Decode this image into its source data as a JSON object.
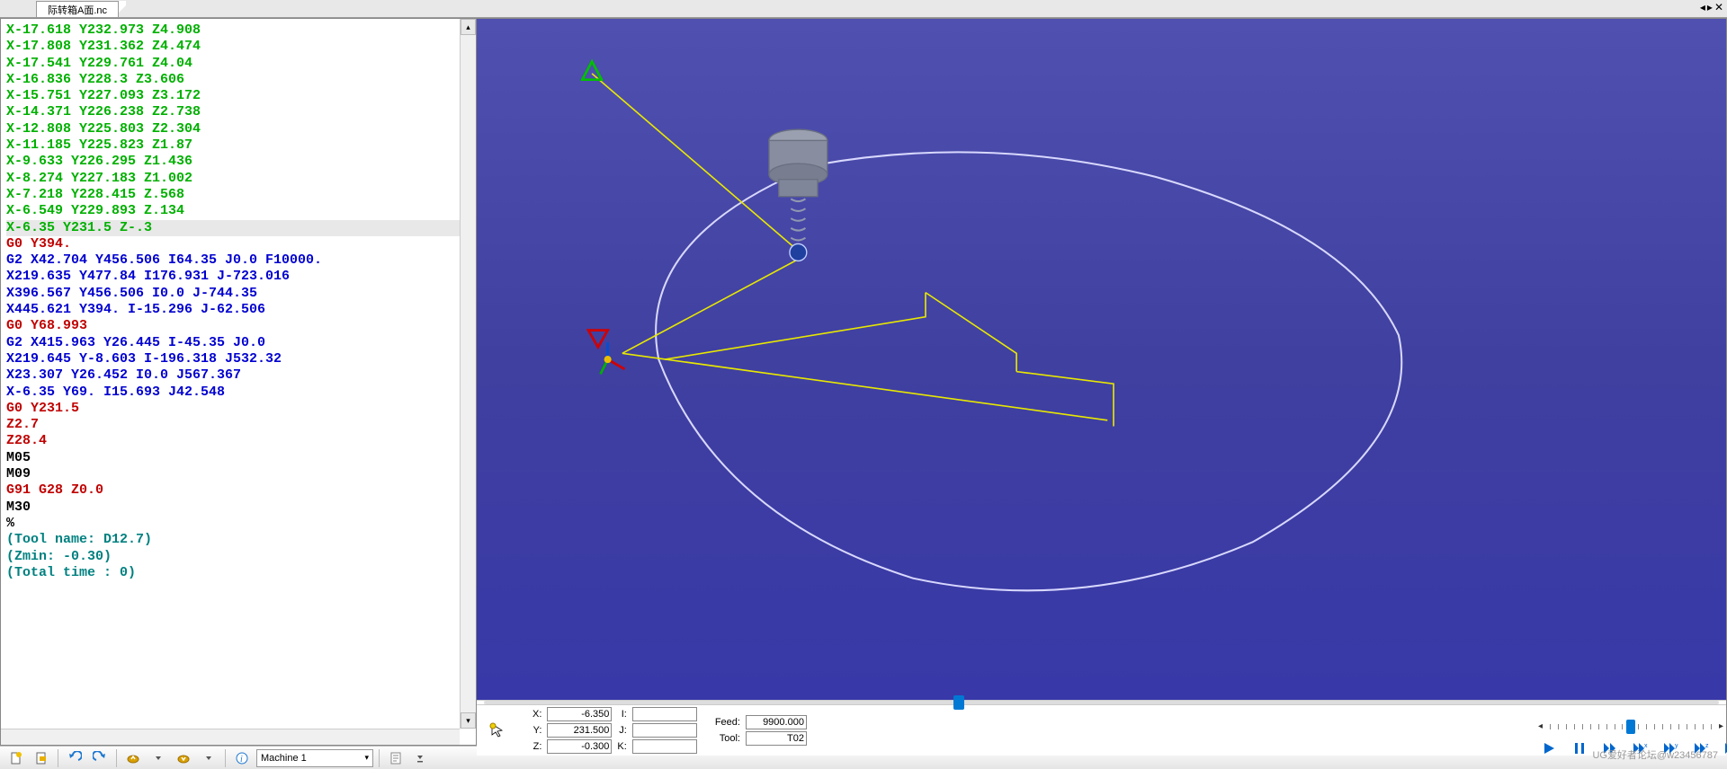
{
  "tab": {
    "title": "际转箱A面.nc"
  },
  "window_controls": {
    "prev": "◂",
    "next": "▸",
    "close": "✕"
  },
  "code": {
    "lines": [
      {
        "t": "X-17.618 Y232.973 Z4.908",
        "cls": "c-green"
      },
      {
        "t": "X-17.808 Y231.362 Z4.474",
        "cls": "c-green"
      },
      {
        "t": "X-17.541 Y229.761 Z4.04",
        "cls": "c-green"
      },
      {
        "t": "X-16.836 Y228.3 Z3.606",
        "cls": "c-green"
      },
      {
        "t": "X-15.751 Y227.093 Z3.172",
        "cls": "c-green"
      },
      {
        "t": "X-14.371 Y226.238 Z2.738",
        "cls": "c-green"
      },
      {
        "t": "X-12.808 Y225.803 Z2.304",
        "cls": "c-green"
      },
      {
        "t": "X-11.185 Y225.823 Z1.87",
        "cls": "c-green"
      },
      {
        "t": "X-9.633 Y226.295 Z1.436",
        "cls": "c-green"
      },
      {
        "t": "X-8.274 Y227.183 Z1.002",
        "cls": "c-green"
      },
      {
        "t": "X-7.218 Y228.415 Z.568",
        "cls": "c-green"
      },
      {
        "t": "X-6.549 Y229.893 Z.134",
        "cls": "c-green"
      },
      {
        "t": "X-6.35 Y231.5 Z-.3",
        "cls": "c-green",
        "hl": true
      },
      {
        "t": "G0 Y394.",
        "cls": "c-red"
      },
      {
        "t": "G2 X42.704 Y456.506 I64.35 J0.0 F10000.",
        "cls": "c-blue"
      },
      {
        "t": "X219.635 Y477.84 I176.931 J-723.016",
        "cls": "c-blue"
      },
      {
        "t": "X396.567 Y456.506 I0.0 J-744.35",
        "cls": "c-blue"
      },
      {
        "t": "X445.621 Y394. I-15.296 J-62.506",
        "cls": "c-blue"
      },
      {
        "t": "G0 Y68.993",
        "cls": "c-red"
      },
      {
        "t": "G2 X415.963 Y26.445 I-45.35 J0.0",
        "cls": "c-blue"
      },
      {
        "t": "X219.645 Y-8.603 I-196.318 J532.32",
        "cls": "c-blue"
      },
      {
        "t": "X23.307 Y26.452 I0.0 J567.367",
        "cls": "c-blue"
      },
      {
        "t": "X-6.35 Y69. I15.693 J42.548",
        "cls": "c-blue"
      },
      {
        "t": "G0 Y231.5",
        "cls": "c-red"
      },
      {
        "t": "Z2.7",
        "cls": "c-red"
      },
      {
        "t": "Z28.4",
        "cls": "c-red"
      },
      {
        "t": "M05",
        "cls": "c-black"
      },
      {
        "t": "M09",
        "cls": "c-black"
      },
      {
        "t": "G91 G28 Z0.0",
        "cls": "c-red"
      },
      {
        "t": "M30",
        "cls": "c-black"
      },
      {
        "t": "%",
        "cls": "c-black"
      },
      {
        "t": "(Tool name: D12.7)",
        "cls": "c-teal"
      },
      {
        "t": "(Zmin: -0.30)",
        "cls": "c-teal"
      },
      {
        "t": "(Total time : 0)",
        "cls": "c-teal"
      }
    ]
  },
  "timeline": {
    "thumb_percent": 38
  },
  "coords": {
    "x_label": "X:",
    "x": "-6.350",
    "y_label": "Y:",
    "y": "231.500",
    "z_label": "Z:",
    "z": "-0.300",
    "i_label": "I:",
    "i": "",
    "j_label": "J:",
    "j": "",
    "k_label": "K:",
    "k": "",
    "feed_label": "Feed:",
    "feed": "9900.000",
    "tool_label": "Tool:",
    "tool": "T02"
  },
  "zoom": {
    "thumb_percent": 50
  },
  "toolbar": {
    "machine_label": "Machine 1"
  },
  "viewer": {
    "bg_top": "#5050b0",
    "bg_bot": "#3838a8",
    "path_color": "#d8d8ff",
    "tool_path_color": "#e8e800",
    "marker_up": "#00c000",
    "marker_down": "#d00000",
    "tool_body": "#888ea0"
  },
  "watermark": "UG爱好者论坛@w23456787"
}
